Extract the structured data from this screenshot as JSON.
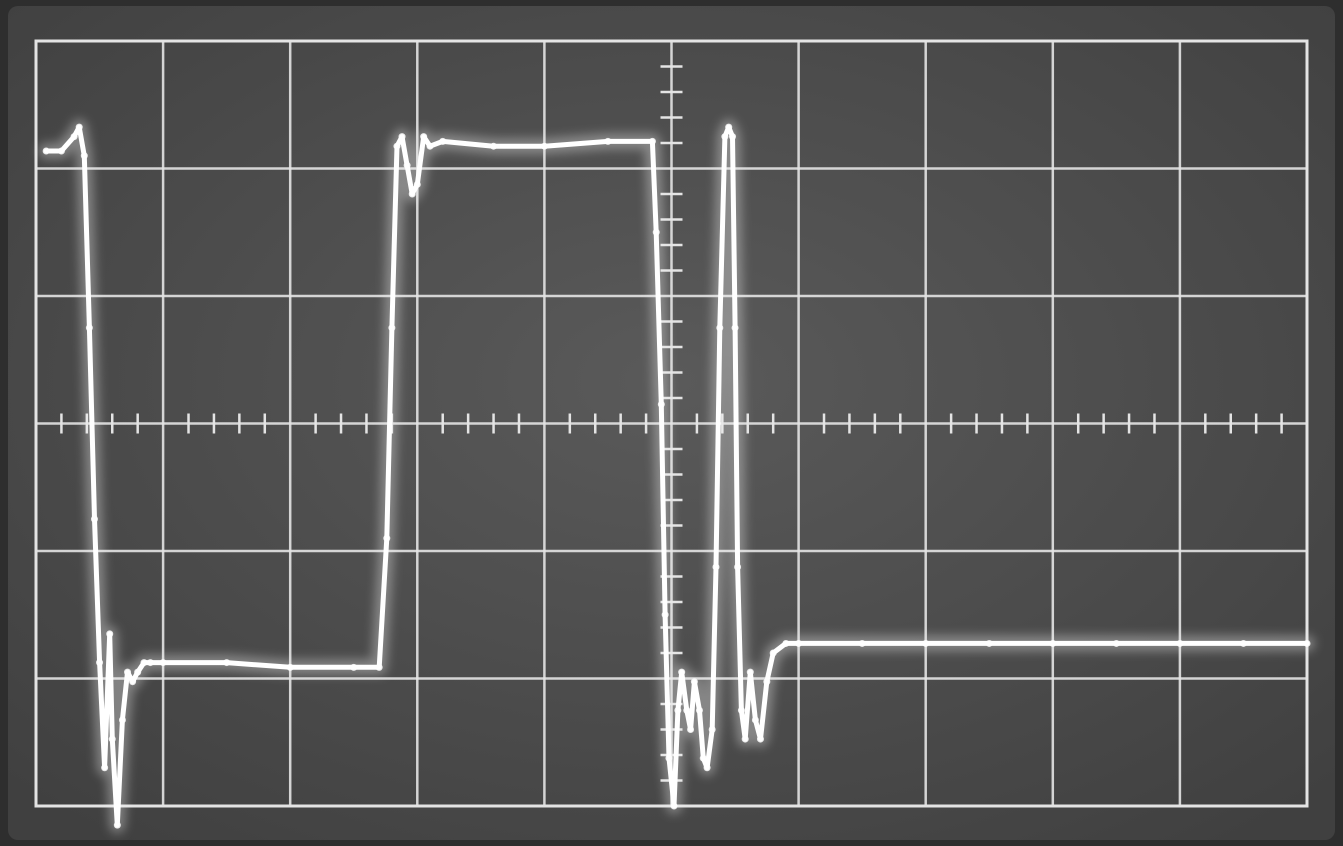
{
  "chart_data": {
    "type": "line",
    "title": "",
    "xlabel": "",
    "ylabel": "",
    "xlim": [
      0,
      10
    ],
    "ylim": [
      -4,
      4
    ],
    "grid": true,
    "grid_divisions": {
      "x": 10,
      "y": 6
    },
    "minor_ticks_per_division": 5,
    "colors": {
      "screen": "#4a4a4a",
      "bezel": "#2e2e2e",
      "graticule": "#e4e4e4",
      "trace": "#ffffff",
      "glow": "#f2f2f2"
    },
    "series": [
      {
        "x": [
          0.08,
          0.2,
          0.3,
          0.34,
          0.38,
          0.42,
          0.46,
          0.5,
          0.54,
          0.58,
          0.6,
          0.64,
          0.68,
          0.72,
          0.76,
          0.8,
          0.85,
          0.9,
          1.0,
          1.5,
          2.0,
          2.5,
          2.7,
          2.76,
          2.8,
          2.84,
          2.88,
          2.92,
          2.96,
          3.0,
          3.05,
          3.1,
          3.2,
          3.6,
          4.0,
          4.5,
          4.85,
          4.88,
          4.92,
          4.95,
          4.98,
          5.02,
          5.05,
          5.08,
          5.12,
          5.15,
          5.18,
          5.22,
          5.25,
          5.28,
          5.32,
          5.35,
          5.38,
          5.42,
          5.45,
          5.48,
          5.5,
          5.52,
          5.55,
          5.58,
          5.62,
          5.66,
          5.7,
          5.75,
          5.8,
          5.9,
          6.0,
          6.5,
          7.0,
          7.5,
          8.0,
          8.5,
          9.0,
          9.5,
          10.0
        ],
        "y": [
          2.85,
          2.85,
          3.0,
          3.1,
          2.8,
          1.0,
          -1.0,
          -2.5,
          -3.6,
          -2.2,
          -3.3,
          -4.2,
          -3.1,
          -2.6,
          -2.7,
          -2.6,
          -2.5,
          -2.5,
          -2.5,
          -2.5,
          -2.55,
          -2.55,
          -2.55,
          -1.2,
          1.0,
          2.9,
          3.0,
          2.7,
          2.4,
          2.5,
          3.0,
          2.9,
          2.95,
          2.9,
          2.9,
          2.95,
          2.95,
          2.0,
          0.2,
          -2.0,
          -3.5,
          -4.0,
          -3.0,
          -2.6,
          -3.0,
          -3.2,
          -2.7,
          -3.0,
          -3.5,
          -3.6,
          -3.2,
          -1.5,
          1.0,
          3.0,
          3.1,
          3.0,
          1.0,
          -1.5,
          -3.0,
          -3.3,
          -2.6,
          -3.1,
          -3.3,
          -2.7,
          -2.4,
          -2.3,
          -2.3,
          -2.3,
          -2.3,
          -2.3,
          -2.3,
          -2.3,
          -2.3,
          -2.3,
          -2.3
        ]
      }
    ]
  }
}
